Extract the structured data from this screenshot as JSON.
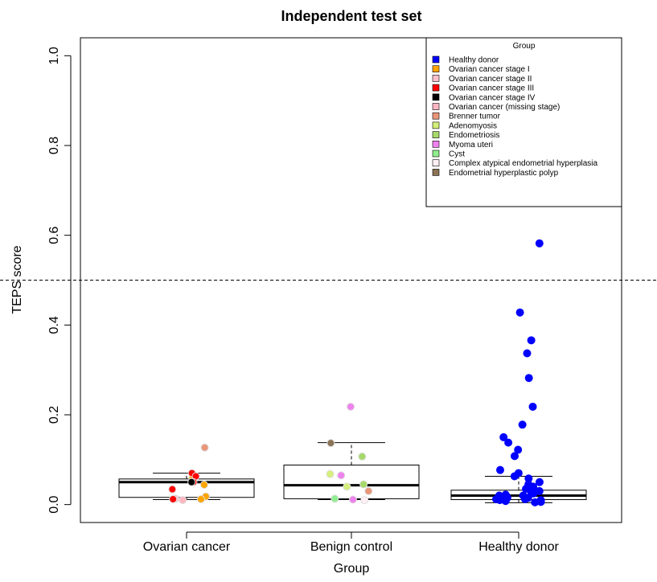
{
  "chart_data": {
    "type": "box",
    "title": "Independent test set",
    "x_label": "Group",
    "y_label": "TEPS score",
    "categories": [
      "Ovarian cancer",
      "Benign control",
      "Healthy donor"
    ],
    "ylim": [
      -0.04,
      1.04
    ],
    "yticks": [
      {
        "value": 0,
        "label": "0.0"
      },
      0.2,
      0.4,
      0.6,
      0.8,
      {
        "value": 1,
        "label": "1.0"
      }
    ],
    "hline": 0.5,
    "boxes": [
      {
        "whisker_low": 0.011,
        "q1": 0.016,
        "median": 0.05,
        "q3": 0.057,
        "whisker_high": 0.07
      },
      {
        "whisker_low": 0.011,
        "q1": 0.013,
        "median": 0.043,
        "q3": 0.088,
        "whisker_high": 0.138
      },
      {
        "whisker_low": 0.004,
        "q1": 0.011,
        "median": 0.02,
        "q3": 0.032,
        "whisker_high": 0.063
      }
    ],
    "legend_title": "Group",
    "legend_position": "top-right",
    "series": [
      {
        "name": "Healthy donor",
        "color": "#0000ff",
        "groups": [
          "Healthy donor",
          "Healthy donor",
          "Healthy donor",
          "Healthy donor",
          "Healthy donor",
          "Healthy donor",
          "Healthy donor",
          "Healthy donor",
          "Healthy donor",
          "Healthy donor",
          "Healthy donor",
          "Healthy donor",
          "Healthy donor",
          "Healthy donor",
          "Healthy donor",
          "Healthy donor",
          "Healthy donor",
          "Healthy donor",
          "Healthy donor",
          "Healthy donor",
          "Healthy donor",
          "Healthy donor",
          "Healthy donor",
          "Healthy donor",
          "Healthy donor",
          "Healthy donor",
          "Healthy donor",
          "Healthy donor",
          "Healthy donor",
          "Healthy donor",
          "Healthy donor",
          "Healthy donor",
          "Healthy donor",
          "Healthy donor",
          "Healthy donor",
          "Healthy donor",
          "Healthy donor",
          "Healthy donor"
        ],
        "values": [
          0.582,
          0.428,
          0.366,
          0.337,
          0.282,
          0.218,
          0.178,
          0.15,
          0.138,
          0.122,
          0.108,
          0.077,
          0.07,
          0.063,
          0.058,
          0.05,
          0.045,
          0.04,
          0.035,
          0.03,
          0.028,
          0.025,
          0.022,
          0.02,
          0.018,
          0.015,
          0.012,
          0.01,
          0.008,
          0.006,
          0.005,
          0.012,
          0.015,
          0.02,
          0.025,
          0.01,
          0.03,
          0.018
        ]
      },
      {
        "name": "Ovarian cancer stage I",
        "color": "#ffa500",
        "groups": [
          "Ovarian cancer",
          "Ovarian cancer",
          "Ovarian cancer",
          "Ovarian cancer"
        ],
        "values": [
          0.058,
          0.044,
          0.018,
          0.012
        ]
      },
      {
        "name": "Ovarian cancer stage II",
        "color": "#ffc0cb",
        "groups": [
          "Ovarian cancer"
        ],
        "values": [
          0.013
        ]
      },
      {
        "name": "Ovarian cancer stage III",
        "color": "#ff0000",
        "groups": [
          "Ovarian cancer",
          "Ovarian cancer",
          "Ovarian cancer",
          "Ovarian cancer",
          "Ovarian cancer"
        ],
        "values": [
          0.07,
          0.063,
          0.05,
          0.034,
          0.012
        ]
      },
      {
        "name": "Ovarian cancer stage IV",
        "color": "#000000",
        "groups": [
          "Ovarian cancer"
        ],
        "values": [
          0.05
        ]
      },
      {
        "name": "Ovarian cancer (missing stage)",
        "color": "#ffb6c1",
        "groups": [
          "Ovarian cancer"
        ],
        "values": [
          0.01
        ]
      },
      {
        "name": "Brenner tumor",
        "color": "#e9967a",
        "groups": [
          "Ovarian cancer",
          "Benign control"
        ],
        "values": [
          0.127,
          0.03
        ]
      },
      {
        "name": "Adenomyosis",
        "color": "#d4f07a",
        "groups": [
          "Benign control",
          "Benign control"
        ],
        "values": [
          0.068,
          0.04
        ]
      },
      {
        "name": "Endometriosis",
        "color": "#a6d96a",
        "groups": [
          "Benign control",
          "Benign control"
        ],
        "values": [
          0.107,
          0.045
        ]
      },
      {
        "name": "Myoma uteri",
        "color": "#ee82ee",
        "groups": [
          "Benign control",
          "Benign control",
          "Benign control"
        ],
        "values": [
          0.218,
          0.065,
          0.011
        ]
      },
      {
        "name": "Cyst",
        "color": "#90ee90",
        "groups": [
          "Benign control"
        ],
        "values": [
          0.013
        ]
      },
      {
        "name": "Complex atypical endometrial hyperplasia",
        "color": "#fff0f5",
        "groups": [
          "Benign control"
        ],
        "values": [
          0.01
        ]
      },
      {
        "name": "Endometrial hyperplastic polyp",
        "color": "#8b7355",
        "groups": [
          "Benign control"
        ],
        "values": [
          0.137
        ]
      }
    ]
  }
}
